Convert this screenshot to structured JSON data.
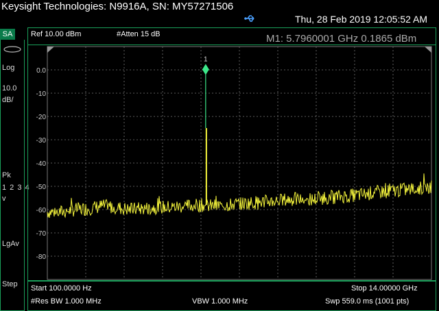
{
  "instrument": {
    "title": "Keysight Technologies: N9916A, SN: MY57271506",
    "datetime": "Thu, 28 Feb 2019 12:05:52 AM"
  },
  "left_panel": {
    "mode": "SA",
    "scale_mode": "Log",
    "scale_value": "10.0",
    "scale_unit": "dB/",
    "detector": "Pk",
    "traces": "1 2 3 4",
    "trace_mode": "v",
    "averaging": "LgAv",
    "step": "Step"
  },
  "readout": {
    "ref_level": "Ref 10.00 dBm",
    "attenuation": "#Atten 15 dB",
    "marker": "M1:  5.7960001 GHz  0.1865 dBm"
  },
  "footer": {
    "start": "Start 100.0000  Hz",
    "stop": "Stop 14.00000 GHz",
    "rbw": "#Res BW 1.000 MHz",
    "vbw": "VBW 1.000 MHz",
    "sweep": "Swp 559.0 ms (1001 pts)"
  },
  "colors": {
    "trace": "#f5f53c",
    "marker": "#3ce88a",
    "grid": "#7a7a7a",
    "frame": "#1aa05a"
  },
  "chart_data": {
    "type": "line",
    "y_tick_labels": [
      "0.0",
      "-10",
      "-20",
      "-30",
      "-40",
      "-50",
      "-60",
      "-70",
      "-80"
    ],
    "ylim": [
      -90,
      10
    ],
    "xlim_ghz": [
      0,
      14
    ],
    "grid": true,
    "marker": {
      "label": "1",
      "x_ghz": 5.796,
      "y_dbm": 0.1865
    },
    "trace_ghz": [
      0,
      0.5,
      1,
      1.5,
      2,
      2.5,
      3,
      3.5,
      4,
      4.5,
      5,
      5.5,
      6,
      6.5,
      7,
      7.5,
      8,
      8.5,
      9,
      9.5,
      10,
      10.5,
      11,
      11.5,
      12,
      12.5,
      13,
      13.5,
      14
    ],
    "trace_dbm": [
      -61,
      -61,
      -60,
      -59.5,
      -58.5,
      -59,
      -60,
      -59.5,
      -59,
      -59,
      -58.5,
      -58,
      -58.5,
      -58,
      -57.5,
      -57,
      -56.5,
      -56,
      -55.5,
      -56,
      -55,
      -54.5,
      -54,
      -53.5,
      -52.5,
      -52,
      -51.5,
      -51,
      -50
    ]
  }
}
